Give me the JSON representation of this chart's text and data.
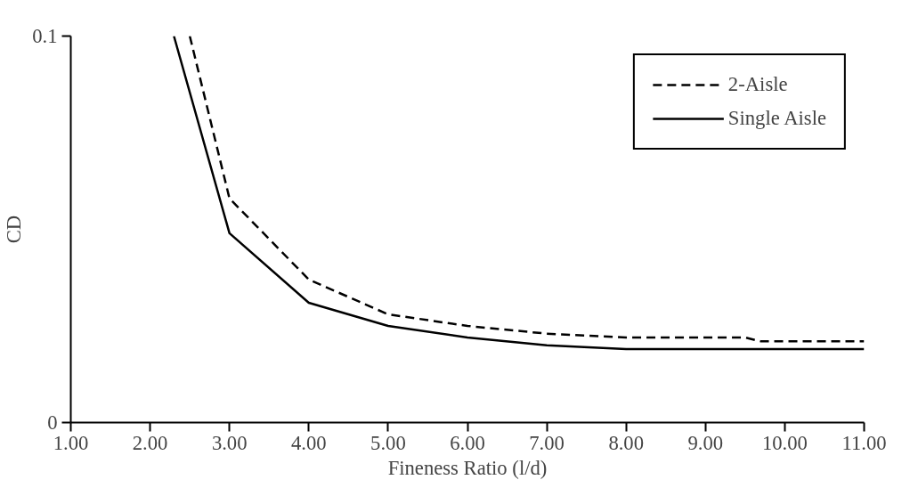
{
  "chart_data": {
    "type": "line",
    "xlabel": "Fineness Ratio (l/d)",
    "ylabel": "CD",
    "xlim": [
      1,
      11
    ],
    "ylim": [
      0,
      0.1
    ],
    "xticks": [
      {
        "value": 1,
        "label": "1.00"
      },
      {
        "value": 2,
        "label": "2.00"
      },
      {
        "value": 3,
        "label": "3.00"
      },
      {
        "value": 4,
        "label": "4.00"
      },
      {
        "value": 5,
        "label": "5.00"
      },
      {
        "value": 6,
        "label": "6.00"
      },
      {
        "value": 7,
        "label": "7.00"
      },
      {
        "value": 8,
        "label": "8.00"
      },
      {
        "value": 9,
        "label": "9.00"
      },
      {
        "value": 10,
        "label": "10.00"
      },
      {
        "value": 11,
        "label": "11.00"
      }
    ],
    "yticks": [
      0,
      0.1
    ],
    "series": [
      {
        "name": "2-Aisle",
        "color": "#000000",
        "line_style": "dashed",
        "x": [
          2.5,
          3,
          4,
          5,
          6,
          7,
          8,
          9,
          9.5,
          9.7,
          11
        ],
        "values": [
          0.1,
          0.058,
          0.037,
          0.028,
          0.025,
          0.023,
          0.022,
          0.022,
          0.022,
          0.021,
          0.021
        ]
      },
      {
        "name": "Single Aisle",
        "color": "#000000",
        "line_style": "solid",
        "x": [
          2.3,
          3,
          4,
          5,
          6,
          7,
          8,
          9,
          10,
          11
        ],
        "values": [
          0.1,
          0.049,
          0.031,
          0.025,
          0.022,
          0.02,
          0.019,
          0.019,
          0.019,
          0.019
        ]
      }
    ],
    "legend": "top right",
    "grid": false,
    "marker": "none"
  }
}
